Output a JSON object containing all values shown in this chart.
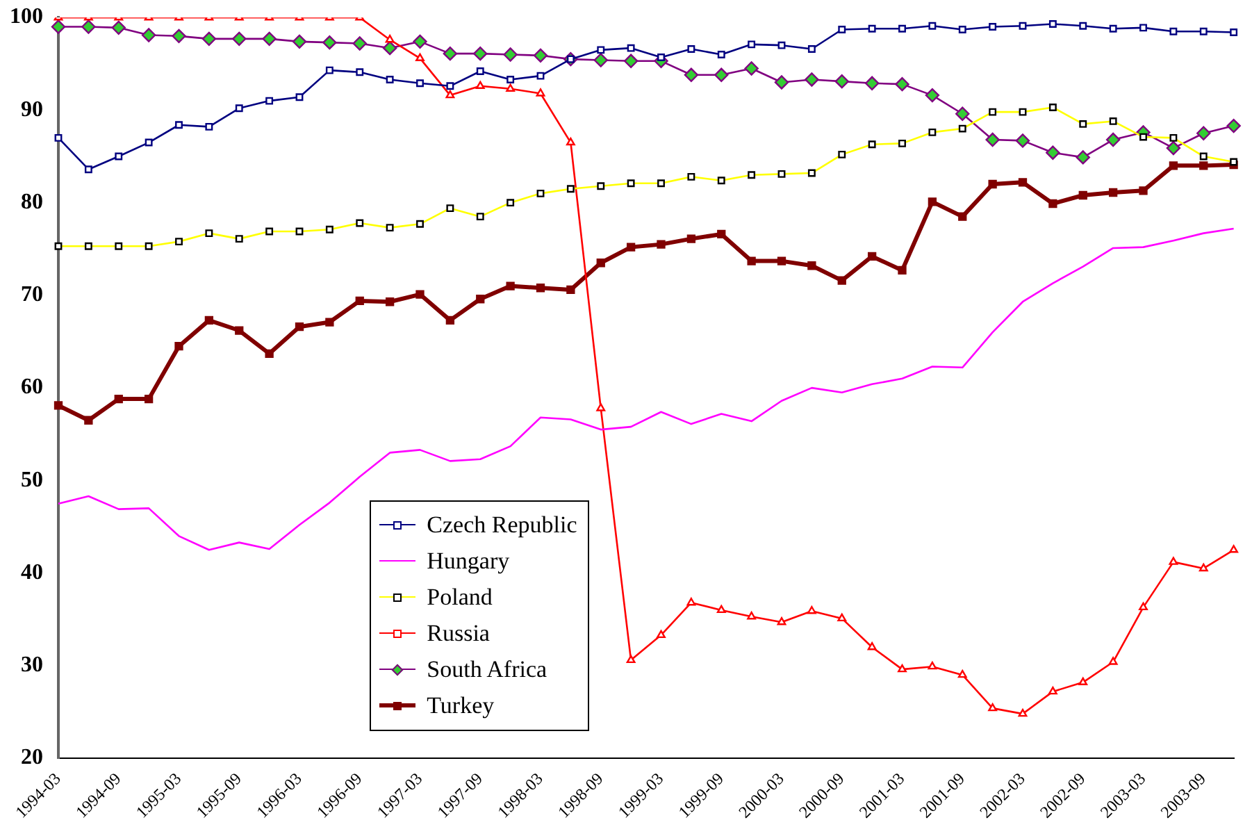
{
  "chart_data": {
    "type": "line",
    "categories": [
      "1994-03",
      null,
      "1994-09",
      null,
      "1995-03",
      null,
      "1995-09",
      null,
      "1996-03",
      null,
      "1996-09",
      null,
      "1997-03",
      null,
      "1997-09",
      null,
      "1998-03",
      null,
      "1998-09",
      null,
      "1999-03",
      null,
      "1999-09",
      null,
      "2000-03",
      null,
      "2000-09",
      null,
      "2001-03",
      null,
      "2001-09",
      null,
      "2002-03",
      null,
      "2002-09",
      null,
      "2003-03",
      null,
      "2003-09",
      null
    ],
    "series": [
      {
        "name": "Czech Republic",
        "color": "#000080",
        "marker": "square",
        "values": [
          87.0,
          83.6,
          85.0,
          86.5,
          88.4,
          88.2,
          90.2,
          91.0,
          91.4,
          94.3,
          94.1,
          93.3,
          92.9,
          92.6,
          94.2,
          93.3,
          93.7,
          95.5,
          96.5,
          96.7,
          95.7,
          96.6,
          96.0,
          97.1,
          97.0,
          96.6,
          98.7,
          98.8,
          98.8,
          99.1,
          98.7,
          99.0,
          99.1,
          99.3,
          99.1,
          98.8,
          98.9,
          98.5,
          98.5,
          98.4
        ]
      },
      {
        "name": "Hungary",
        "color": "#ff00ff",
        "marker": "none",
        "values": [
          47.5,
          48.3,
          46.9,
          47.0,
          44.0,
          42.5,
          43.3,
          42.6,
          45.2,
          47.6,
          50.4,
          53.0,
          53.3,
          52.1,
          52.3,
          53.7,
          56.8,
          56.6,
          55.5,
          55.8,
          57.4,
          56.1,
          57.2,
          56.4,
          58.6,
          60.0,
          59.5,
          60.4,
          61.0,
          62.3,
          62.2,
          66.0,
          69.3,
          71.3,
          73.1,
          75.1,
          75.2,
          75.9,
          76.7,
          77.2
        ]
      },
      {
        "name": "Poland",
        "color": "#ffff00",
        "marker": "square",
        "values": [
          75.3,
          75.3,
          75.3,
          75.3,
          75.8,
          76.7,
          76.1,
          76.9,
          76.9,
          77.1,
          77.8,
          77.3,
          77.7,
          79.4,
          78.5,
          80.0,
          81.0,
          81.5,
          81.8,
          82.1,
          82.1,
          82.8,
          82.4,
          83.0,
          83.1,
          83.2,
          85.2,
          86.3,
          86.4,
          87.6,
          88.0,
          89.8,
          89.8,
          90.3,
          88.5,
          88.8,
          87.1,
          87.0,
          85.0,
          84.4
        ]
      },
      {
        "name": "Russia",
        "color": "#ff0000",
        "marker": "triangle",
        "values": [
          100,
          100,
          100,
          100,
          100,
          100,
          100,
          100,
          100,
          100,
          100,
          97.6,
          95.6,
          91.6,
          92.6,
          92.3,
          91.8,
          86.5,
          57.8,
          30.6,
          33.3,
          36.8,
          36.0,
          35.3,
          34.7,
          35.9,
          35.1,
          32.0,
          29.6,
          29.9,
          29.0,
          25.4,
          24.8,
          27.2,
          28.2,
          30.4,
          36.3,
          41.2,
          40.5,
          42.5
        ]
      },
      {
        "name": "South Africa",
        "color": "#800080",
        "marker": "diamond",
        "values": [
          99.0,
          99.0,
          98.9,
          98.1,
          98.0,
          97.7,
          97.7,
          97.7,
          97.4,
          97.3,
          97.2,
          96.7,
          97.4,
          96.1,
          96.1,
          96.0,
          95.9,
          95.5,
          95.4,
          95.3,
          95.3,
          93.8,
          93.8,
          94.5,
          93.0,
          93.3,
          93.1,
          92.9,
          92.8,
          91.6,
          89.6,
          86.8,
          86.7,
          85.4,
          84.9,
          86.8,
          87.6,
          85.9,
          87.5,
          88.3
        ]
      },
      {
        "name": "Turkey",
        "color": "#800000",
        "marker": "square",
        "values": [
          58.1,
          56.5,
          58.8,
          58.8,
          64.5,
          67.3,
          66.2,
          63.7,
          66.6,
          67.1,
          69.4,
          69.3,
          70.1,
          67.3,
          69.6,
          71.0,
          70.8,
          70.6,
          73.5,
          75.2,
          75.5,
          76.1,
          76.6,
          73.7,
          73.7,
          73.2,
          71.6,
          74.2,
          72.7,
          80.1,
          78.5,
          82.0,
          82.2,
          79.9,
          80.8,
          81.1,
          81.3,
          84.0,
          84.0,
          84.1
        ]
      }
    ],
    "ylim": [
      20,
      100
    ],
    "yticks": [
      20,
      30,
      40,
      50,
      60,
      70,
      80,
      90,
      100
    ],
    "grid": false,
    "legend": "bottom left"
  }
}
